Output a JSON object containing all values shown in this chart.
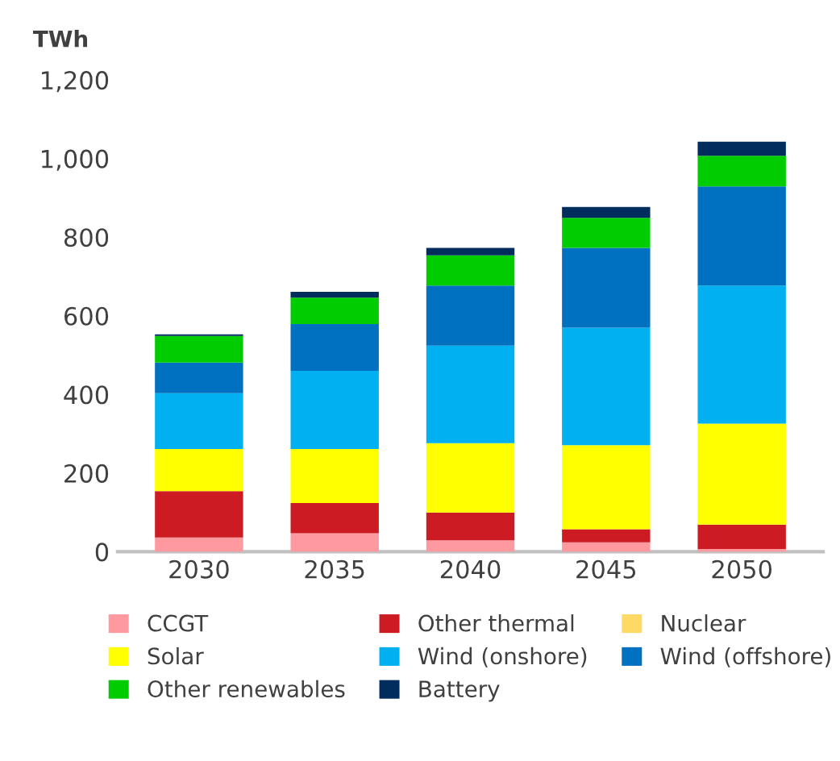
{
  "chart_data": {
    "type": "bar",
    "stacked": true,
    "ylabel": "TWh",
    "categories": [
      "2030",
      "2035",
      "2040",
      "2045",
      "2050"
    ],
    "series": [
      {
        "name": "CCGT",
        "color": "#ff99a0",
        "values": [
          36,
          47,
          29,
          24,
          7
        ]
      },
      {
        "name": "Other thermal",
        "color": "#cc1b22",
        "values": [
          118,
          77,
          71,
          33,
          62
        ]
      },
      {
        "name": "Nuclear",
        "color": "#ffd966",
        "values": [
          0,
          0,
          0,
          0,
          0
        ]
      },
      {
        "name": "Solar",
        "color": "#ffff00",
        "values": [
          107,
          137,
          176,
          214,
          257
        ]
      },
      {
        "name": "Wind (onshore)",
        "color": "#00b0f0",
        "values": [
          142,
          199,
          248,
          299,
          351
        ]
      },
      {
        "name": "Wind (offshore)",
        "color": "#0070c0",
        "values": [
          78,
          119,
          153,
          203,
          252
        ]
      },
      {
        "name": "Other renewables",
        "color": "#00cc00",
        "values": [
          68,
          67,
          77,
          76,
          78
        ]
      },
      {
        "name": "Battery",
        "color": "#002d5e",
        "values": [
          4,
          15,
          19,
          28,
          36
        ]
      }
    ],
    "ylim": [
      0,
      1200
    ],
    "yticks": [
      0,
      {
        "value": 200,
        "label": "200"
      },
      {
        "value": 400,
        "label": "400"
      },
      {
        "value": 600,
        "label": "600"
      },
      {
        "value": 800,
        "label": "800"
      },
      {
        "value": 1000,
        "label": "1,000"
      },
      {
        "value": 1200,
        "label": "1,200"
      }
    ],
    "grid": false,
    "legend": "bottom"
  }
}
